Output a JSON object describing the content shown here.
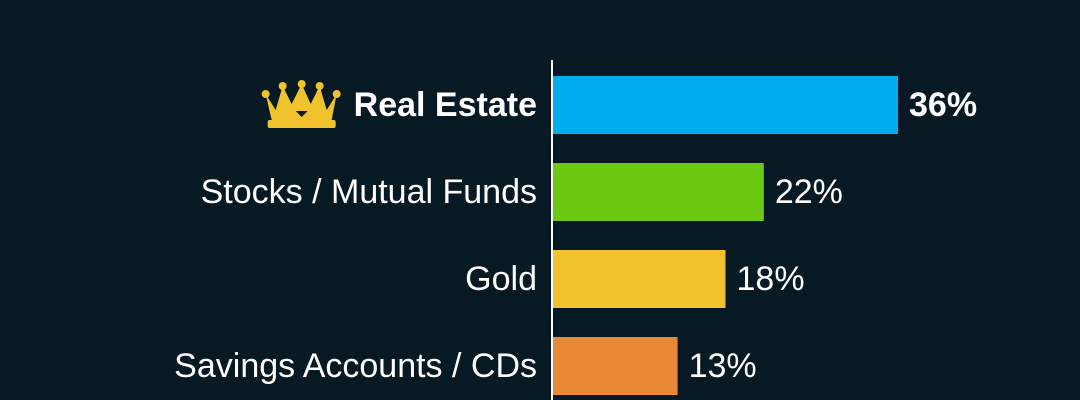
{
  "chart_data": {
    "type": "bar",
    "orientation": "horizontal",
    "categories": [
      "Real Estate",
      "Stocks / Mutual Funds",
      "Gold",
      "Savings Accounts / CDs"
    ],
    "values": [
      36,
      22,
      18,
      13
    ],
    "value_labels": [
      "36%",
      "22%",
      "18%",
      "13%"
    ],
    "unit": "%",
    "colors": [
      "#00AEEF",
      "#6CC911",
      "#F0C22E",
      "#EA8935"
    ],
    "highlight": {
      "category": "Real Estate",
      "icon": "crown-icon",
      "icon_color": "#F0C22E"
    },
    "title": "",
    "xlabel": "",
    "ylabel": "",
    "grid": false,
    "legend": "none"
  },
  "theme": {
    "background": "#071923",
    "text": "#FFFFFF",
    "axis_line": "#FFFFFF"
  }
}
